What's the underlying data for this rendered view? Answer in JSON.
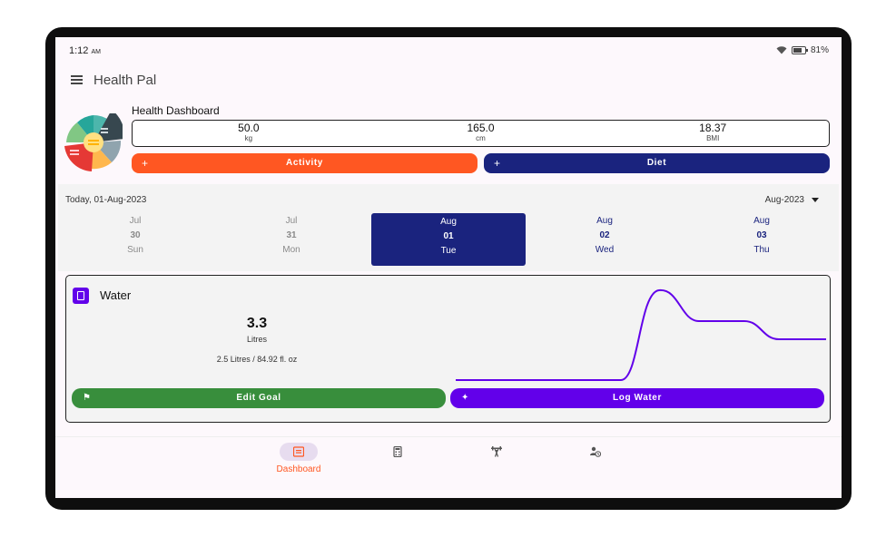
{
  "status_bar": {
    "time": "1:12",
    "ampm": "AM",
    "battery": "81%"
  },
  "app_bar": {
    "title": "Health Pal"
  },
  "dashboard": {
    "title": "Health Dashboard",
    "metrics": [
      {
        "value": "50.0",
        "unit": "kg"
      },
      {
        "value": "165.0",
        "unit": "cm"
      },
      {
        "value": "18.37",
        "unit": "BMI"
      }
    ],
    "activity_label": "Activity",
    "diet_label": "Diet",
    "plus": "+"
  },
  "calendar": {
    "today": "Today, 01-Aug-2023",
    "month": "Aug-2023",
    "days": [
      {
        "month": "Jul",
        "date": "30",
        "weekday": "Sun",
        "state": "past"
      },
      {
        "month": "Jul",
        "date": "31",
        "weekday": "Mon",
        "state": "past"
      },
      {
        "month": "Aug",
        "date": "01",
        "weekday": "Tue",
        "state": "selected"
      },
      {
        "month": "Aug",
        "date": "02",
        "weekday": "Wed",
        "state": "future"
      },
      {
        "month": "Aug",
        "date": "03",
        "weekday": "Thu",
        "state": "future"
      }
    ]
  },
  "water": {
    "title": "Water",
    "amount": "3.3",
    "unit": "Litres",
    "goal": "2.5  Litres / 84.92  fl. oz",
    "edit_goal_label": "Edit Goal",
    "log_water_label": "Log Water",
    "line_color": "#6200ea"
  },
  "bottom_nav": {
    "items": [
      {
        "label": "Dashboard",
        "icon": "dashboard-icon",
        "active": true
      },
      {
        "label": "",
        "icon": "calculator-icon",
        "active": false
      },
      {
        "label": "",
        "icon": "fitness-icon",
        "active": false
      },
      {
        "label": "",
        "icon": "profile-history-icon",
        "active": false
      }
    ]
  },
  "colors": {
    "activity": "#ff5722",
    "diet": "#1a237e",
    "edit_goal": "#388e3c",
    "log_water": "#6200ea"
  }
}
